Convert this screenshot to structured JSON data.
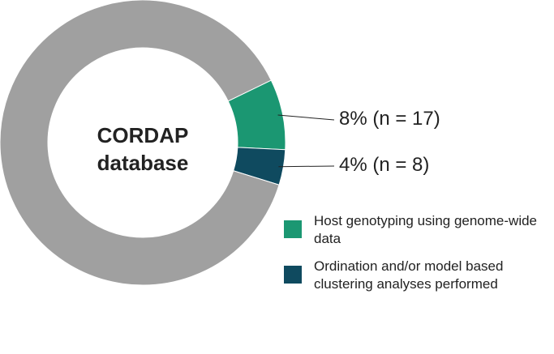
{
  "chart_data": {
    "type": "donut",
    "center_text": "CORDAP database",
    "categories": [
      "Host genotyping using genome-wide data",
      "Ordination and/or model based clustering analyses performed",
      null
    ],
    "values": [
      8,
      4,
      88
    ],
    "value_labels": [
      "8% (n = 17)",
      "4% (n = 8)",
      null
    ],
    "colors": [
      "#1b9772",
      "#0f4a5f",
      "#a0a0a0"
    ]
  }
}
